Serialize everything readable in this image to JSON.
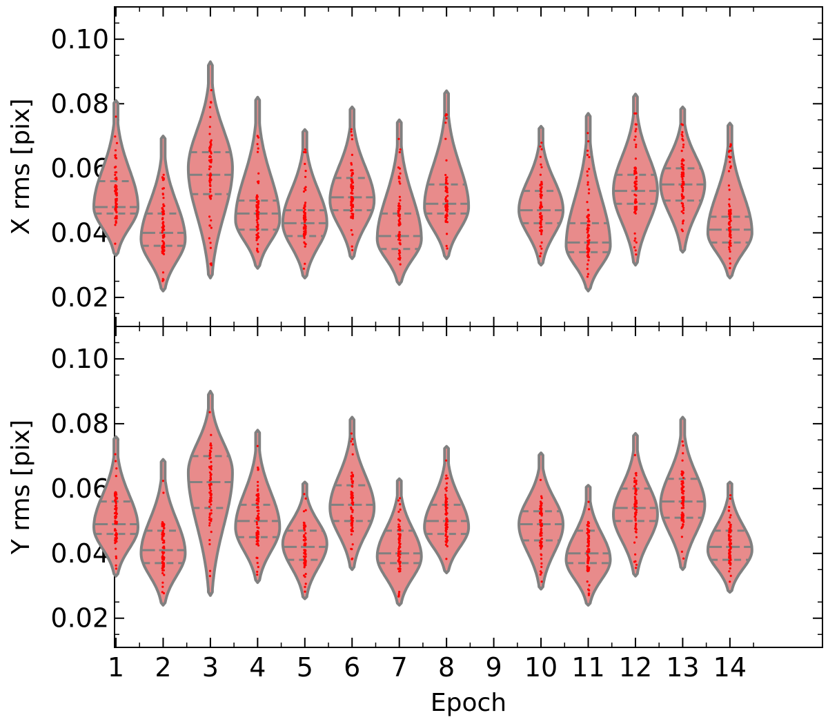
{
  "chart_data": {
    "type": "violin",
    "xlabel": "Epoch",
    "categories": [
      "1",
      "2",
      "3",
      "4",
      "5",
      "6",
      "7",
      "8",
      "9",
      "10",
      "11",
      "12",
      "13",
      "14"
    ],
    "colors": {
      "violin_fill": "#e88b8b",
      "violin_edge": "#808080",
      "points": "#ff0000",
      "quartile_lines": "#808080"
    },
    "grid": false,
    "panels": [
      {
        "ylabel": "X rms [pix]",
        "ylim": [
          0.011,
          0.11
        ],
        "yticks": [
          0.02,
          0.04,
          0.06,
          0.08,
          0.1
        ],
        "ytick_labels": [
          "0.02",
          "0.04",
          "0.06",
          "0.08",
          "0.10"
        ],
        "violins": [
          {
            "x": 1,
            "min": 0.033,
            "q1": 0.046,
            "median": 0.048,
            "q3": 0.056,
            "max": 0.081,
            "mode": 0.048
          },
          {
            "x": 2,
            "min": 0.022,
            "q1": 0.036,
            "median": 0.04,
            "q3": 0.046,
            "max": 0.07,
            "mode": 0.038
          },
          {
            "x": 3,
            "min": 0.026,
            "q1": 0.052,
            "median": 0.058,
            "q3": 0.065,
            "max": 0.093,
            "mode": 0.06
          },
          {
            "x": 4,
            "min": 0.029,
            "q1": 0.041,
            "median": 0.046,
            "q3": 0.05,
            "max": 0.082,
            "mode": 0.044
          },
          {
            "x": 5,
            "min": 0.026,
            "q1": 0.039,
            "median": 0.043,
            "q3": 0.047,
            "max": 0.072,
            "mode": 0.043
          },
          {
            "x": 6,
            "min": 0.032,
            "q1": 0.047,
            "median": 0.051,
            "q3": 0.057,
            "max": 0.079,
            "mode": 0.05
          },
          {
            "x": 7,
            "min": 0.024,
            "q1": 0.035,
            "median": 0.039,
            "q3": 0.046,
            "max": 0.075,
            "mode": 0.038
          },
          {
            "x": 8,
            "min": 0.032,
            "q1": 0.046,
            "median": 0.049,
            "q3": 0.055,
            "max": 0.084,
            "mode": 0.048
          },
          {
            "x": 10,
            "min": 0.03,
            "q1": 0.043,
            "median": 0.047,
            "q3": 0.053,
            "max": 0.073,
            "mode": 0.047
          },
          {
            "x": 11,
            "min": 0.022,
            "q1": 0.034,
            "median": 0.037,
            "q3": 0.043,
            "max": 0.077,
            "mode": 0.036
          },
          {
            "x": 12,
            "min": 0.03,
            "q1": 0.049,
            "median": 0.053,
            "q3": 0.058,
            "max": 0.083,
            "mode": 0.053
          },
          {
            "x": 13,
            "min": 0.034,
            "q1": 0.05,
            "median": 0.055,
            "q3": 0.06,
            "max": 0.079,
            "mode": 0.055
          },
          {
            "x": 14,
            "min": 0.026,
            "q1": 0.037,
            "median": 0.041,
            "q3": 0.045,
            "max": 0.074,
            "mode": 0.04
          }
        ]
      },
      {
        "ylabel": "Y rms [pix]",
        "ylim": [
          0.011,
          0.11
        ],
        "yticks": [
          0.02,
          0.04,
          0.06,
          0.08,
          0.1
        ],
        "ytick_labels": [
          "0.02",
          "0.04",
          "0.06",
          "0.08",
          "0.10"
        ],
        "violins": [
          {
            "x": 1,
            "min": 0.033,
            "q1": 0.046,
            "median": 0.049,
            "q3": 0.056,
            "max": 0.076,
            "mode": 0.048
          },
          {
            "x": 2,
            "min": 0.024,
            "q1": 0.037,
            "median": 0.041,
            "q3": 0.047,
            "max": 0.069,
            "mode": 0.04
          },
          {
            "x": 3,
            "min": 0.027,
            "q1": 0.054,
            "median": 0.062,
            "q3": 0.07,
            "max": 0.09,
            "mode": 0.065
          },
          {
            "x": 4,
            "min": 0.031,
            "q1": 0.045,
            "median": 0.05,
            "q3": 0.055,
            "max": 0.078,
            "mode": 0.048
          },
          {
            "x": 5,
            "min": 0.026,
            "q1": 0.038,
            "median": 0.042,
            "q3": 0.047,
            "max": 0.062,
            "mode": 0.043
          },
          {
            "x": 6,
            "min": 0.035,
            "q1": 0.05,
            "median": 0.055,
            "q3": 0.061,
            "max": 0.082,
            "mode": 0.054
          },
          {
            "x": 7,
            "min": 0.024,
            "q1": 0.037,
            "median": 0.04,
            "q3": 0.047,
            "max": 0.063,
            "mode": 0.039
          },
          {
            "x": 8,
            "min": 0.034,
            "q1": 0.046,
            "median": 0.05,
            "q3": 0.055,
            "max": 0.073,
            "mode": 0.048
          },
          {
            "x": 10,
            "min": 0.029,
            "q1": 0.044,
            "median": 0.049,
            "q3": 0.053,
            "max": 0.071,
            "mode": 0.049
          },
          {
            "x": 11,
            "min": 0.024,
            "q1": 0.037,
            "median": 0.04,
            "q3": 0.047,
            "max": 0.061,
            "mode": 0.038
          },
          {
            "x": 12,
            "min": 0.033,
            "q1": 0.05,
            "median": 0.054,
            "q3": 0.06,
            "max": 0.077,
            "mode": 0.052
          },
          {
            "x": 13,
            "min": 0.035,
            "q1": 0.051,
            "median": 0.056,
            "q3": 0.063,
            "max": 0.082,
            "mode": 0.055
          },
          {
            "x": 14,
            "min": 0.028,
            "q1": 0.038,
            "median": 0.042,
            "q3": 0.047,
            "max": 0.062,
            "mode": 0.041
          }
        ]
      }
    ]
  }
}
